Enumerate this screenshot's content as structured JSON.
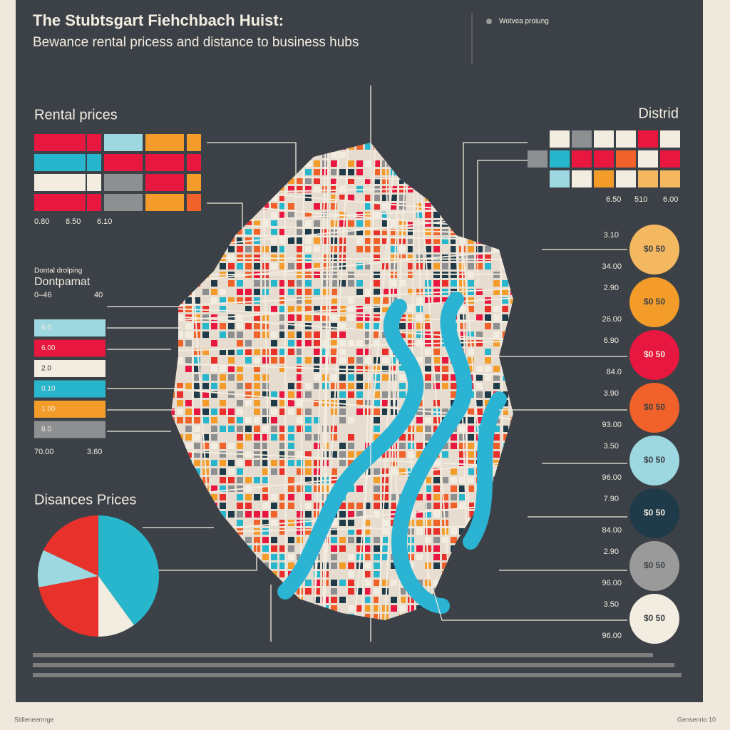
{
  "header": {
    "title": "The Stubtsgart Fiehchbach Huist:",
    "subtitle": "Bewance rental pricess and distance to business hubs"
  },
  "legend": {
    "items": [
      {
        "label": "Wotvea proiung",
        "color": "#9a9a9a"
      }
    ]
  },
  "rental_prices": {
    "title": "Rental prices",
    "rows": [
      [
        "#e8173f",
        "#e8173f",
        "#9dd8e0",
        "#f39c2a",
        "#f39c2a"
      ],
      [
        "#27b6cc",
        "#27b6cc",
        "#e8173f",
        "#e8173f",
        "#e8173f"
      ],
      [
        "#f3ece0",
        "#f3ece0",
        "#8d8f91",
        "#e8173f",
        "#f39c2a"
      ],
      [
        "#e8173f",
        "#e8173f",
        "#8d8f91",
        "#f39c2a",
        "#f0622a"
      ]
    ],
    "scale": [
      "0.80",
      "8.50",
      "6.10"
    ]
  },
  "district": {
    "title": "Distrid",
    "rows": [
      [
        "#3c4147",
        "#f3ece0",
        "#8d8f91",
        "#f3ece0",
        "#f3ece0",
        "#e8173f",
        "#f3ece0"
      ],
      [
        "#8d8f91",
        "#27b6cc",
        "#e8173f",
        "#e8173f",
        "#f0622a",
        "#f3ece0",
        "#e8173f"
      ],
      [
        "#3c4147",
        "#9dd8e0",
        "#f3ece0",
        "#f39c2a",
        "#f3ece0",
        "#f4b860",
        "#f4b860"
      ]
    ],
    "scale": [
      "6.50",
      "510",
      "6.00"
    ]
  },
  "drop": {
    "title": "Dontal drolping",
    "subtitle": "Dontpamat",
    "range": [
      "0–46",
      "40"
    ],
    "bars": [
      {
        "label": "6.0",
        "color": "#9dd8e0"
      },
      {
        "label": "6.00",
        "color": "#e8173f"
      },
      {
        "label": "2.0",
        "color": "#f3ece0"
      },
      {
        "label": "0.10",
        "color": "#27b6cc"
      },
      {
        "label": "1.00",
        "color": "#f39c2a"
      },
      {
        "label": "8.0",
        "color": "#8d8f91"
      }
    ],
    "scale": [
      "70.00",
      "3.60"
    ]
  },
  "distances": {
    "title": "Disances Prices",
    "pie": [
      {
        "value": 40,
        "color": "#27b6cc"
      },
      {
        "value": 10,
        "color": "#f3ece0"
      },
      {
        "value": 22,
        "color": "#e8312a"
      },
      {
        "value": 10,
        "color": "#9dd8e0"
      },
      {
        "value": 18,
        "color": "#e8312a"
      }
    ]
  },
  "hubs": [
    {
      "top": "3.10",
      "bottom": "34.00",
      "label": "$0 50",
      "color": "#f4b860"
    },
    {
      "top": "2.90",
      "bottom": "26.00",
      "label": "$0 50",
      "color": "#f39c2a"
    },
    {
      "top": "6.90",
      "bottom": "84.0",
      "label": "$0 50",
      "color": "#e8173f"
    },
    {
      "top": "3.90",
      "bottom": "93.00",
      "label": "$0 50",
      "color": "#f0622a"
    },
    {
      "top": "3.50",
      "bottom": "96.00",
      "label": "$0 50",
      "color": "#9dd8e0"
    },
    {
      "top": "7.90",
      "bottom": "84.00",
      "label": "$0 50",
      "color": "#1f3a48"
    },
    {
      "top": "2.90",
      "bottom": "96.00",
      "label": "$0 50",
      "color": "#9a9a9a"
    },
    {
      "top": "3.50",
      "bottom": "96.00",
      "label": "$0 50",
      "color": "#f3ece0"
    }
  ],
  "footer": {
    "left": "Stilleneerrnge",
    "right": "Gensenrio 10"
  }
}
